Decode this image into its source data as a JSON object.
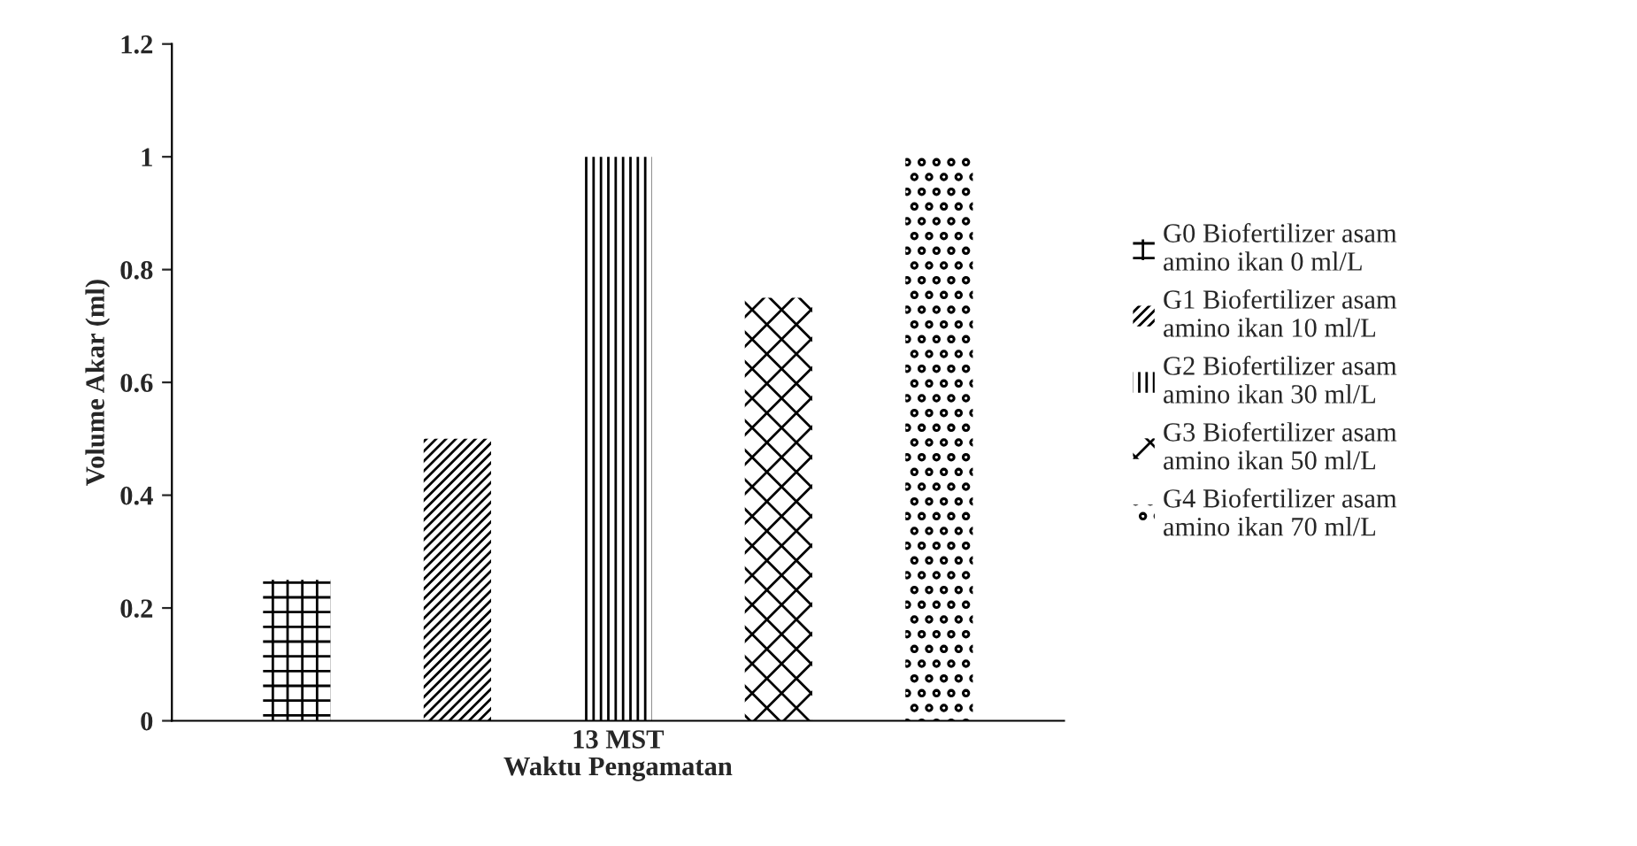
{
  "chart_data": {
    "type": "bar",
    "xlabel": "Waktu Pengamatan",
    "ylabel": "Volume Akar (ml)",
    "categories": [
      "13 MST"
    ],
    "series": [
      {
        "name": "G0 Biofertilizer asam amino ikan 0 ml/L",
        "color": "#000000",
        "values": [
          0.25
        ]
      },
      {
        "name": "G1 Biofertilizer asam amino ikan 10 ml/L",
        "color": "#000000",
        "values": [
          0.5
        ]
      },
      {
        "name": "G2 Biofertilizer asam amino ikan 30 ml/L",
        "color": "#000000",
        "values": [
          1
        ]
      },
      {
        "name": "G3 Biofertilizer asam amino ikan 50 ml/L",
        "color": "#000000",
        "values": [
          0.75
        ]
      },
      {
        "name": "G4 Biofertilizer asam amino ikan 70 ml/L",
        "color": "#000000",
        "values": [
          1
        ]
      }
    ],
    "ylim": [
      0,
      1.2
    ],
    "yticks": [
      0,
      0.2,
      0.4,
      0.6,
      0.8,
      1,
      1.2
    ],
    "grid": false,
    "legend": "right"
  }
}
